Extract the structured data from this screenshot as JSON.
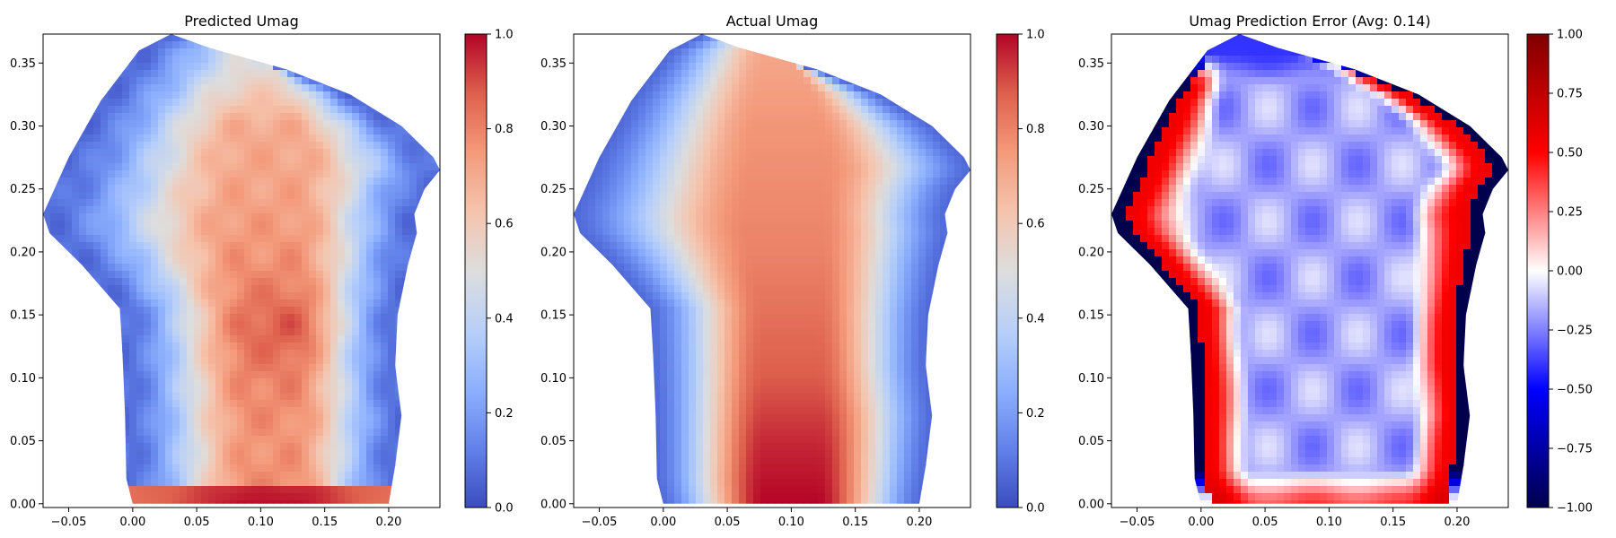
{
  "chart_data": [
    {
      "type": "heatmap",
      "title": "Predicted Umag",
      "xlim": [
        -0.07,
        0.24
      ],
      "ylim": [
        -0.003,
        0.373
      ],
      "xticks": [
        -0.05,
        0.0,
        0.05,
        0.1,
        0.15,
        0.2
      ],
      "xtick_labels": [
        "−0.05",
        "0.00",
        "0.05",
        "0.10",
        "0.15",
        "0.20"
      ],
      "yticks": [
        0.0,
        0.05,
        0.1,
        0.15,
        0.2,
        0.25,
        0.3,
        0.35
      ],
      "ytick_labels": [
        "0.00",
        "0.05",
        "0.10",
        "0.15",
        "0.20",
        "0.25",
        "0.30",
        "0.35"
      ],
      "colormap": "coolwarm",
      "colorbar": {
        "min": 0.0,
        "max": 1.0,
        "ticks": [
          0.0,
          0.2,
          0.4,
          0.6,
          0.8,
          1.0
        ],
        "tick_labels": [
          "0.0",
          "0.2",
          "0.4",
          "0.6",
          "0.8",
          "1.0"
        ]
      },
      "field": {
        "center_x": 0.11,
        "center_value_by_height": [
          [
            0.0,
            1.0
          ],
          [
            0.015,
            0.78
          ],
          [
            0.05,
            0.76
          ],
          [
            0.1,
            0.8
          ],
          [
            0.14,
            0.84
          ],
          [
            0.2,
            0.76
          ],
          [
            0.25,
            0.72
          ],
          [
            0.3,
            0.7
          ],
          [
            0.35,
            0.5
          ]
        ],
        "edge_value": 0.08,
        "bottom_band_value": 0.98,
        "hot_spot": {
          "x": 0.12,
          "y": 0.14,
          "value": 0.9
        }
      }
    },
    {
      "type": "heatmap",
      "title": "Actual Umag",
      "xlim": [
        -0.07,
        0.24
      ],
      "ylim": [
        -0.003,
        0.373
      ],
      "xticks": [
        -0.05,
        0.0,
        0.05,
        0.1,
        0.15,
        0.2
      ],
      "xtick_labels": [
        "−0.05",
        "0.00",
        "0.05",
        "0.10",
        "0.15",
        "0.20"
      ],
      "yticks": [
        0.0,
        0.05,
        0.1,
        0.15,
        0.2,
        0.25,
        0.3,
        0.35
      ],
      "ytick_labels": [
        "0.00",
        "0.05",
        "0.10",
        "0.15",
        "0.20",
        "0.25",
        "0.30",
        "0.35"
      ],
      "colormap": "coolwarm",
      "colorbar": {
        "min": 0.0,
        "max": 1.0,
        "ticks": [
          0.0,
          0.2,
          0.4,
          0.6,
          0.8,
          1.0
        ],
        "tick_labels": [
          "0.0",
          "0.2",
          "0.4",
          "0.6",
          "0.8",
          "1.0"
        ]
      },
      "field": {
        "center_x": 0.1,
        "center_value_by_height": [
          [
            0.0,
            1.0
          ],
          [
            0.05,
            0.95
          ],
          [
            0.1,
            0.88
          ],
          [
            0.15,
            0.84
          ],
          [
            0.2,
            0.8
          ],
          [
            0.25,
            0.78
          ],
          [
            0.3,
            0.76
          ],
          [
            0.35,
            0.72
          ]
        ],
        "edge_value": 0.06
      }
    },
    {
      "type": "heatmap",
      "title": "Umag Prediction Error (Avg: 0.14)",
      "xlim": [
        -0.07,
        0.24
      ],
      "ylim": [
        -0.003,
        0.373
      ],
      "xticks": [
        -0.05,
        0.0,
        0.05,
        0.1,
        0.15,
        0.2
      ],
      "xtick_labels": [
        "−0.05",
        "0.00",
        "0.05",
        "0.10",
        "0.15",
        "0.20"
      ],
      "yticks": [
        0.0,
        0.05,
        0.1,
        0.15,
        0.2,
        0.25,
        0.3,
        0.35
      ],
      "ytick_labels": [
        "0.00",
        "0.05",
        "0.10",
        "0.15",
        "0.20",
        "0.25",
        "0.30",
        "0.35"
      ],
      "colormap": "seismic",
      "colorbar": {
        "min": -1.0,
        "max": 1.0,
        "ticks": [
          -1.0,
          -0.75,
          -0.5,
          -0.25,
          0.0,
          0.25,
          0.5,
          0.75,
          1.0
        ],
        "tick_labels": [
          "−1.00",
          "−0.75",
          "−0.50",
          "−0.25",
          "0.00",
          "0.25",
          "0.50",
          "0.75",
          "1.00"
        ]
      },
      "field": {
        "interior_value": -0.18,
        "near_edge_value": 0.55,
        "outer_edge_value": -1.0,
        "top_value": -0.4,
        "bottom_value": 0.7
      }
    }
  ]
}
